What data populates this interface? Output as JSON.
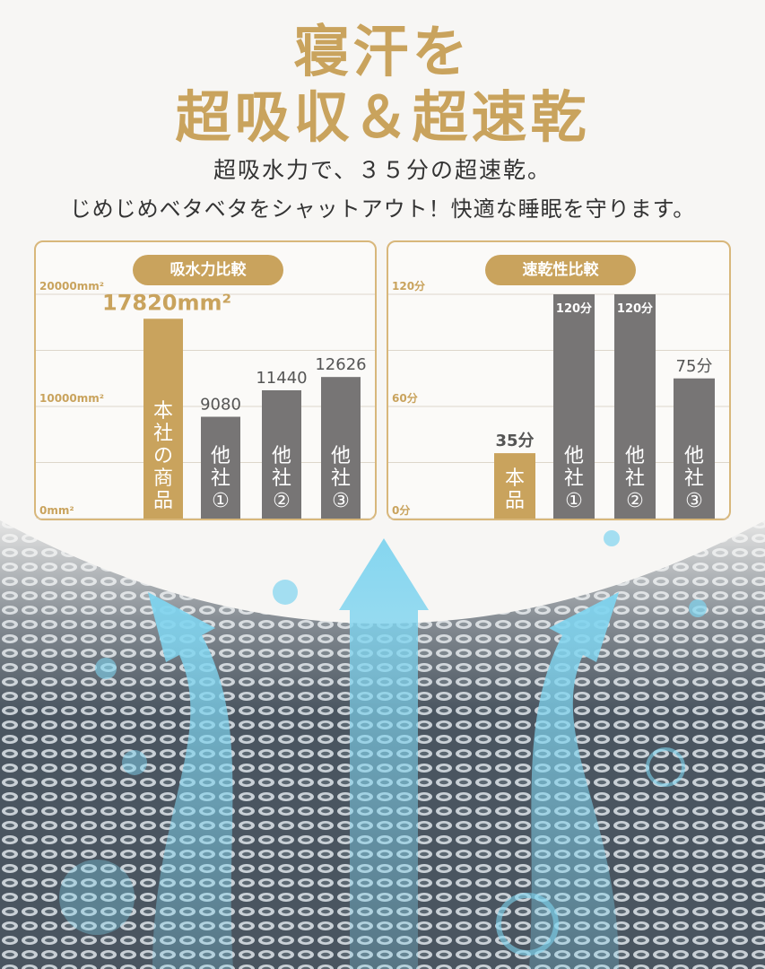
{
  "headline": {
    "line1": "寝汗を",
    "line2": "超吸収＆超速乾"
  },
  "subtitle": {
    "line1": "超吸水力で、３５分の超速乾。",
    "line2": "じめじめベタベタをシャットアウト！快適な睡眠を守ります。"
  },
  "colors": {
    "gold": "#c9a35d",
    "gray": "#777575",
    "water": "#7fd4ef"
  },
  "chart_data": [
    {
      "type": "bar",
      "title": "吸水力比較",
      "categories": [
        "本社の商品",
        "他社①",
        "他社②",
        "他社③"
      ],
      "values": [
        17820,
        9080,
        11440,
        12626
      ],
      "value_labels": [
        "17820mm²",
        "9080",
        "11440",
        "12626"
      ],
      "ylim": [
        0,
        20000
      ],
      "yticks": [
        0,
        10000,
        20000
      ],
      "ytick_labels": [
        "0mm²",
        "10000mm²",
        "20000mm²"
      ],
      "grid": true
    },
    {
      "type": "bar",
      "title": "速乾性比較",
      "categories": [
        "本品",
        "他社①",
        "他社②",
        "他社③"
      ],
      "values": [
        35,
        120,
        120,
        75
      ],
      "value_labels": [
        "35分",
        "120分",
        "120分",
        "75分"
      ],
      "ylim": [
        0,
        120
      ],
      "yticks": [
        0,
        60,
        120
      ],
      "ytick_labels": [
        "0分",
        "60分",
        "120分"
      ],
      "grid": true
    }
  ]
}
